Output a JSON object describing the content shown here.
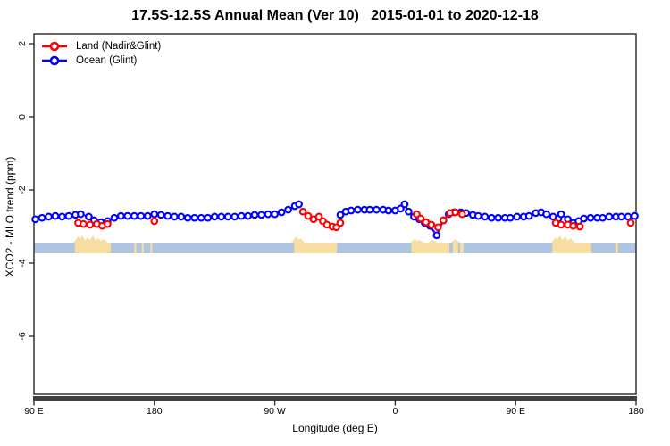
{
  "title": "17.5S-12.5S Annual Mean (Ver 10)   2015-01-01 to 2020-12-18",
  "legend": {
    "items": [
      {
        "label": "Land (Nadir&Glint)",
        "color": "#ff0000",
        "marker": "open-circle-with-line"
      },
      {
        "label": "Ocean (Glint)",
        "color": "#0000ff",
        "marker": "open-circle-with-line"
      }
    ]
  },
  "axes": {
    "x": {
      "label": "Longitude (deg E)",
      "span_deg": 450,
      "ticks": [
        {
          "deg": 0,
          "label": "90 E"
        },
        {
          "deg": 90,
          "label": "180"
        },
        {
          "deg": 180,
          "label": "90 W"
        },
        {
          "deg": 270,
          "label": "0"
        },
        {
          "deg": 360,
          "label": "90 E"
        },
        {
          "deg": 450,
          "label": "180"
        }
      ]
    },
    "y": {
      "label": "XCO2 - MLO trend (ppm)",
      "ticks": [
        {
          "value": 2,
          "label": "2"
        },
        {
          "value": 0,
          "label": "0"
        },
        {
          "value": -2,
          "label": "-2"
        },
        {
          "value": -4,
          "label": "-4"
        },
        {
          "value": -6,
          "label": "-6"
        }
      ],
      "range": [
        -7.6,
        2.3
      ]
    }
  },
  "chart_data": {
    "type": "line",
    "title": "17.5S-12.5S Annual Mean (Ver 10)   2015-01-01 to 2020-12-18",
    "xlabel": "Longitude (deg E)",
    "ylabel": "XCO2 - MLO trend (ppm)",
    "x_axis_note": "x = degrees eastward from 90E, axis wraps 90E>180>90W>0>90E>180 (450 deg total)",
    "ylim": [
      -7.6,
      2.3
    ],
    "units": "ppm",
    "series": [
      {
        "name": "Ocean (Glint)",
        "color": "#0000ff",
        "segments": [
          [
            [
              1,
              -2.8
            ],
            [
              6,
              -2.76
            ],
            [
              11,
              -2.73
            ],
            [
              16,
              -2.71
            ],
            [
              21,
              -2.73
            ],
            [
              26,
              -2.71
            ],
            [
              31,
              -2.68
            ],
            [
              35,
              -2.66
            ],
            [
              41,
              -2.73
            ],
            [
              45,
              -2.83
            ],
            [
              50,
              -2.88
            ],
            [
              55,
              -2.85
            ],
            [
              60,
              -2.76
            ],
            [
              65,
              -2.71
            ],
            [
              70,
              -2.71
            ],
            [
              75,
              -2.71
            ],
            [
              80,
              -2.71
            ],
            [
              85,
              -2.71
            ],
            [
              90,
              -2.66
            ],
            [
              95,
              -2.68
            ],
            [
              100,
              -2.71
            ],
            [
              105,
              -2.73
            ],
            [
              110,
              -2.73
            ],
            [
              115,
              -2.76
            ],
            [
              120,
              -2.76
            ],
            [
              125,
              -2.76
            ],
            [
              130,
              -2.76
            ],
            [
              135,
              -2.73
            ],
            [
              140,
              -2.73
            ],
            [
              145,
              -2.73
            ],
            [
              150,
              -2.73
            ],
            [
              155,
              -2.71
            ],
            [
              160,
              -2.71
            ],
            [
              165,
              -2.68
            ],
            [
              170,
              -2.68
            ],
            [
              175,
              -2.66
            ],
            [
              180,
              -2.66
            ],
            [
              185,
              -2.61
            ],
            [
              190,
              -2.54
            ],
            [
              195,
              -2.44
            ],
            [
              198,
              -2.39
            ]
          ],
          [
            [
              229,
              -2.68
            ],
            [
              233,
              -2.59
            ],
            [
              237,
              -2.56
            ],
            [
              242,
              -2.54
            ],
            [
              247,
              -2.54
            ],
            [
              251,
              -2.54
            ],
            [
              256,
              -2.54
            ],
            [
              261,
              -2.54
            ],
            [
              265,
              -2.56
            ],
            [
              270,
              -2.56
            ],
            [
              274,
              -2.51
            ],
            [
              277,
              -2.39
            ],
            [
              280,
              -2.59
            ],
            [
              284,
              -2.73
            ],
            [
              288,
              -2.8
            ],
            [
              292,
              -2.9
            ],
            [
              296,
              -2.98
            ],
            [
              301,
              -3.24
            ],
            [
              306,
              -2.83
            ],
            [
              310,
              -2.66
            ],
            [
              314,
              -2.61
            ],
            [
              319,
              -2.61
            ],
            [
              323,
              -2.63
            ],
            [
              328,
              -2.68
            ],
            [
              332,
              -2.71
            ],
            [
              337,
              -2.73
            ],
            [
              342,
              -2.76
            ],
            [
              347,
              -2.76
            ],
            [
              352,
              -2.76
            ],
            [
              356,
              -2.76
            ],
            [
              361,
              -2.73
            ],
            [
              366,
              -2.73
            ],
            [
              370,
              -2.71
            ],
            [
              375,
              -2.63
            ],
            [
              379,
              -2.61
            ],
            [
              383,
              -2.66
            ],
            [
              388,
              -2.73
            ],
            [
              392,
              -2.78
            ],
            [
              394,
              -2.66
            ],
            [
              399,
              -2.8
            ],
            [
              403,
              -2.9
            ],
            [
              407,
              -2.85
            ],
            [
              411,
              -2.78
            ],
            [
              416,
              -2.76
            ],
            [
              421,
              -2.76
            ],
            [
              425,
              -2.76
            ],
            [
              430,
              -2.73
            ],
            [
              435,
              -2.73
            ],
            [
              439,
              -2.73
            ],
            [
              444,
              -2.73
            ],
            [
              449,
              -2.71
            ]
          ]
        ]
      },
      {
        "name": "Land (Nadir&Glint)",
        "color": "#ff0000",
        "segments": [
          [
            [
              33,
              -2.9
            ],
            [
              37,
              -2.93
            ],
            [
              42,
              -2.95
            ],
            [
              47,
              -2.93
            ],
            [
              51,
              -2.98
            ],
            [
              55,
              -2.93
            ]
          ],
          [
            [
              90,
              -2.85
            ]
          ],
          [
            [
              201,
              -2.59
            ],
            [
              205,
              -2.71
            ],
            [
              209,
              -2.8
            ],
            [
              213,
              -2.73
            ],
            [
              216,
              -2.85
            ],
            [
              219,
              -2.95
            ],
            [
              223,
              -3.0
            ],
            [
              226,
              -3.02
            ],
            [
              229,
              -2.9
            ]
          ],
          [
            [
              286,
              -2.66
            ],
            [
              289,
              -2.78
            ],
            [
              293,
              -2.88
            ],
            [
              297,
              -2.95
            ],
            [
              302,
              -3.02
            ],
            [
              306,
              -2.83
            ],
            [
              311,
              -2.63
            ],
            [
              315,
              -2.61
            ],
            [
              320,
              -2.66
            ]
          ],
          [
            [
              390,
              -2.9
            ],
            [
              394,
              -2.95
            ],
            [
              399,
              -2.95
            ],
            [
              403,
              -2.98
            ],
            [
              408,
              -3.0
            ]
          ],
          [
            [
              446,
              -2.9
            ]
          ]
        ]
      }
    ],
    "map_strip": {
      "description": "land/ocean strip for latitude band",
      "ocean_color": "#afc4df",
      "land_color": "#f6dda2",
      "value_top": -3.44,
      "value_bottom": -3.73,
      "land_regions": [
        {
          "start": 30.5,
          "end": 57.5,
          "peaks": [
            {
              "deg": 33,
              "h": 7
            },
            {
              "deg": 36,
              "h": 8
            },
            {
              "deg": 40,
              "h": 6
            },
            {
              "deg": 44,
              "h": 8
            },
            {
              "deg": 48,
              "h": 5
            },
            {
              "deg": 52,
              "h": 4
            }
          ]
        },
        {
          "start": 75.0,
          "end": 76.5,
          "peaks": []
        },
        {
          "start": 80.5,
          "end": 82.0,
          "peaks": []
        },
        {
          "start": 87.0,
          "end": 88.5,
          "peaks": []
        },
        {
          "start": 194.5,
          "end": 226.5,
          "peaks": [
            {
              "deg": 196,
              "h": 7
            },
            {
              "deg": 199,
              "h": 5
            }
          ]
        },
        {
          "start": 282.0,
          "end": 310.5,
          "peaks": [
            {
              "deg": 284.5,
              "h": 4
            },
            {
              "deg": 288,
              "h": 3
            },
            {
              "deg": 298,
              "h": 3
            }
          ]
        },
        {
          "start": 313.0,
          "end": 317.0,
          "peaks": [
            {
              "deg": 315,
              "h": 4
            }
          ]
        },
        {
          "start": 318.5,
          "end": 321.0,
          "peaks": []
        },
        {
          "start": 387.5,
          "end": 416.5,
          "peaks": [
            {
              "deg": 390,
              "h": 6
            },
            {
              "deg": 393,
              "h": 8
            },
            {
              "deg": 397,
              "h": 7
            },
            {
              "deg": 401,
              "h": 5
            }
          ]
        },
        {
          "start": 434.5,
          "end": 436.5,
          "peaks": []
        }
      ]
    },
    "style": {
      "axis_color": "#333333",
      "thick_axis_color": "#404040"
    }
  }
}
